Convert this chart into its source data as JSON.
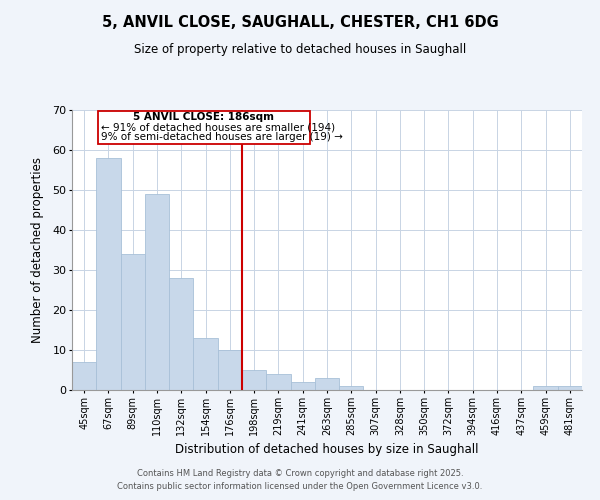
{
  "title": "5, ANVIL CLOSE, SAUGHALL, CHESTER, CH1 6DG",
  "subtitle": "Size of property relative to detached houses in Saughall",
  "xlabel": "Distribution of detached houses by size in Saughall",
  "ylabel": "Number of detached properties",
  "bar_labels": [
    "45sqm",
    "67sqm",
    "89sqm",
    "110sqm",
    "132sqm",
    "154sqm",
    "176sqm",
    "198sqm",
    "219sqm",
    "241sqm",
    "263sqm",
    "285sqm",
    "307sqm",
    "328sqm",
    "350sqm",
    "372sqm",
    "394sqm",
    "416sqm",
    "437sqm",
    "459sqm",
    "481sqm"
  ],
  "bar_values": [
    7,
    58,
    34,
    49,
    28,
    13,
    10,
    5,
    4,
    2,
    3,
    1,
    0,
    0,
    0,
    0,
    0,
    0,
    0,
    1,
    1
  ],
  "bar_color": "#c8d8ea",
  "bar_edge_color": "#a8c0d8",
  "highlight_line_color": "#cc0000",
  "ylim": [
    0,
    70
  ],
  "yticks": [
    0,
    10,
    20,
    30,
    40,
    50,
    60,
    70
  ],
  "annotation_title": "5 ANVIL CLOSE: 186sqm",
  "annotation_line1": "← 91% of detached houses are smaller (194)",
  "annotation_line2": "9% of semi-detached houses are larger (19) →",
  "footer1": "Contains HM Land Registry data © Crown copyright and database right 2025.",
  "footer2": "Contains public sector information licensed under the Open Government Licence v3.0.",
  "bg_color": "#f0f4fa",
  "plot_bg_color": "#ffffff"
}
